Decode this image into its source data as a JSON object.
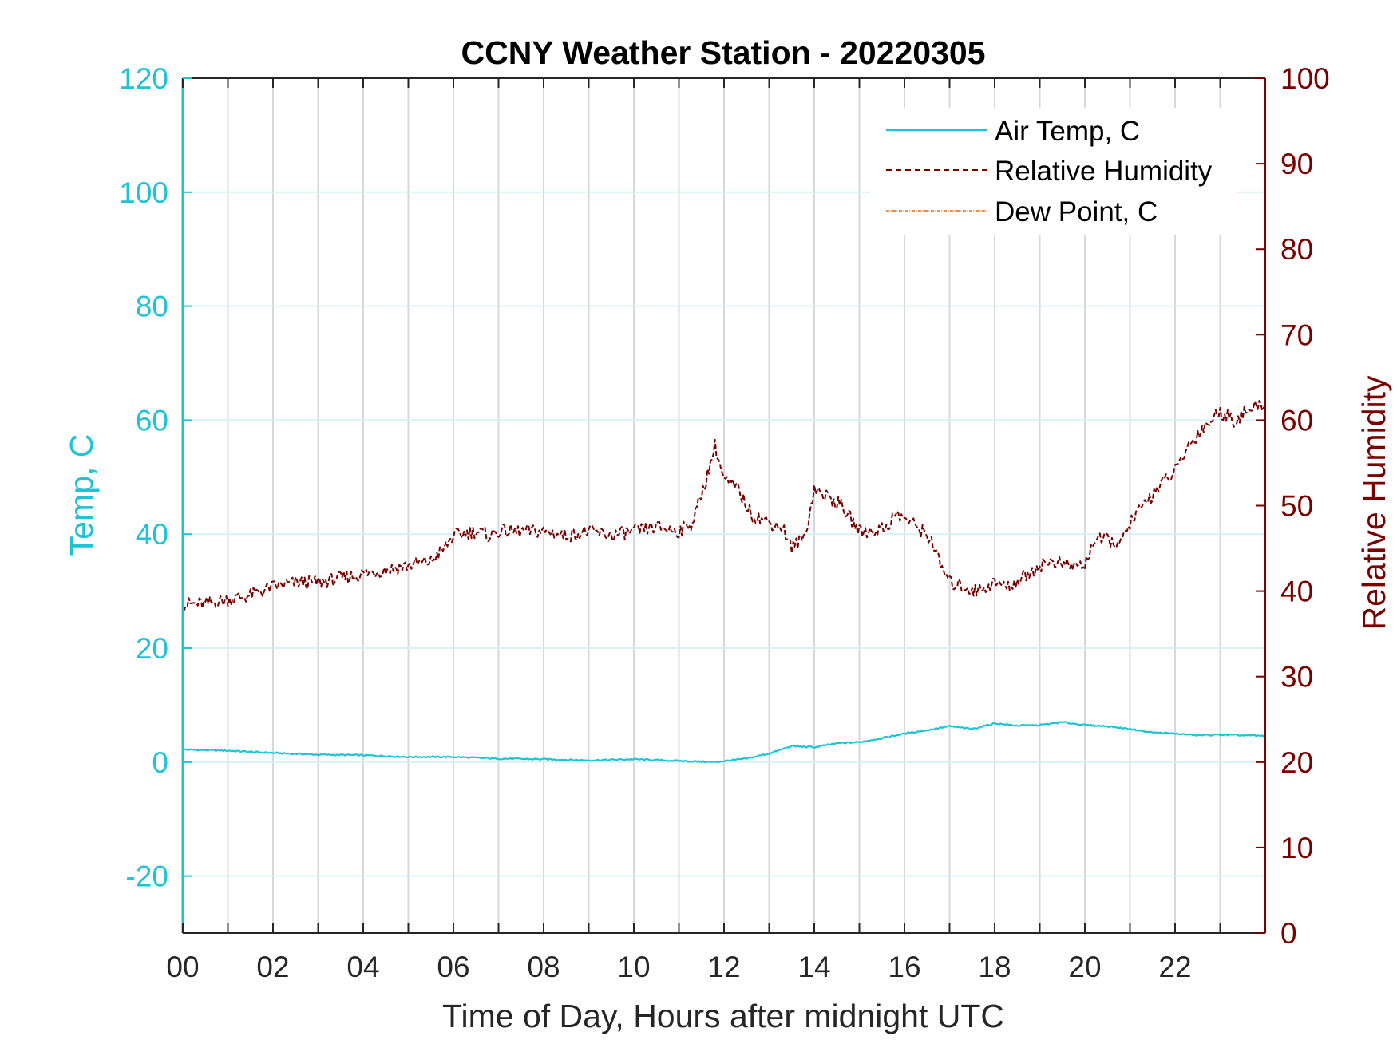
{
  "chart_data": {
    "type": "line",
    "title": "CCNY Weather Station - 20220305",
    "xlabel": "Time of Day, Hours after midnight UTC",
    "ylabel_left": "Temp, C",
    "ylabel_right": "Relative Humidity",
    "xlim": [
      0,
      24
    ],
    "ylim_left": [
      -30,
      120
    ],
    "ylim_right": [
      0,
      100
    ],
    "x_ticks": [
      0,
      1,
      2,
      3,
      4,
      5,
      6,
      7,
      8,
      9,
      10,
      11,
      12,
      13,
      14,
      15,
      16,
      17,
      18,
      19,
      20,
      21,
      22,
      23
    ],
    "x_tick_labels": [
      "00",
      "02",
      "04",
      "06",
      "08",
      "10",
      "12",
      "14",
      "16",
      "18",
      "20",
      "22"
    ],
    "x_tick_label_values": [
      0,
      2,
      4,
      6,
      8,
      10,
      12,
      14,
      16,
      18,
      20,
      22
    ],
    "y_left_ticks": [
      -20,
      0,
      20,
      40,
      60,
      80,
      100,
      120
    ],
    "y_left_tick_labels": [
      "-20",
      "0",
      "20",
      "40",
      "60",
      "80",
      "100",
      "120"
    ],
    "y_right_ticks": [
      0,
      10,
      20,
      30,
      40,
      50,
      60,
      70,
      80,
      90,
      100
    ],
    "y_right_tick_labels": [
      "0",
      "10",
      "20",
      "30",
      "40",
      "50",
      "60",
      "70",
      "80",
      "90",
      "100"
    ],
    "grid": true,
    "legend_position": "top-right",
    "colors": {
      "temp": "#1fc3d6",
      "humidity": "#7a0000",
      "dewpoint": "#e06a10",
      "axis_dark": "#262626",
      "grid": "#d5d8dc"
    },
    "series": [
      {
        "name": "Air Temp, C",
        "axis": "left",
        "style": "solid",
        "x": [
          0,
          1,
          2,
          3,
          4,
          5,
          6,
          7,
          8,
          9,
          10,
          11,
          11.8,
          12.5,
          13,
          13.5,
          14,
          14.5,
          15,
          15.5,
          16,
          16.5,
          17,
          17.5,
          18,
          18.5,
          19,
          19.5,
          20,
          20.5,
          21,
          21.5,
          22,
          22.5,
          23,
          24
        ],
        "y": [
          2.2,
          2.0,
          1.6,
          1.3,
          1.2,
          0.9,
          0.9,
          0.6,
          0.5,
          0.3,
          0.5,
          0.2,
          0.0,
          0.6,
          1.5,
          2.8,
          2.6,
          3.3,
          3.5,
          4.2,
          5.0,
          5.6,
          6.3,
          5.8,
          6.8,
          6.4,
          6.5,
          7.0,
          6.5,
          6.3,
          5.8,
          5.2,
          5.0,
          4.7,
          4.8,
          4.6
        ]
      },
      {
        "name": "Relative Humidity",
        "axis": "right",
        "style": "dashed",
        "x": [
          0,
          0.5,
          1,
          1.5,
          2,
          2.5,
          3,
          3.5,
          4,
          4.5,
          5,
          5.5,
          5.8,
          6,
          6.5,
          6.8,
          7,
          7.5,
          8,
          8.5,
          9,
          9.5,
          10,
          10.5,
          11,
          11.3,
          11.6,
          11.8,
          12,
          12.3,
          12.6,
          13,
          13.3,
          13.5,
          13.8,
          14,
          14.3,
          14.6,
          15,
          15.3,
          15.6,
          15.8,
          16,
          16.3,
          16.6,
          16.8,
          17,
          17.3,
          17.6,
          18,
          18.3,
          18.6,
          19,
          19.3,
          19.6,
          20,
          20.2,
          20.5,
          20.8,
          21,
          21.3,
          21.6,
          22,
          22.3,
          22.6,
          23,
          23.3,
          23.6,
          24
        ],
        "y": [
          38.5,
          38.5,
          39,
          39.5,
          40.5,
          41,
          41,
          41.5,
          42,
          42.5,
          43,
          43.5,
          45,
          46.5,
          47,
          46.5,
          47,
          47,
          47,
          46.5,
          47,
          46.5,
          47,
          47.5,
          47,
          48,
          53,
          57,
          53,
          52,
          49,
          48,
          47.5,
          45,
          46.5,
          52,
          51,
          50,
          47,
          47,
          47.5,
          49,
          48.5,
          47.5,
          46,
          43,
          41,
          40.5,
          40,
          41,
          40.5,
          41.5,
          43,
          43.5,
          43,
          43,
          46,
          46,
          45.5,
          48,
          50,
          52,
          54,
          57,
          59,
          61,
          60,
          61,
          62
        ]
      },
      {
        "name": "Dew Point, C",
        "axis": "left",
        "style": "dashdot",
        "x": [],
        "y": []
      }
    ]
  }
}
